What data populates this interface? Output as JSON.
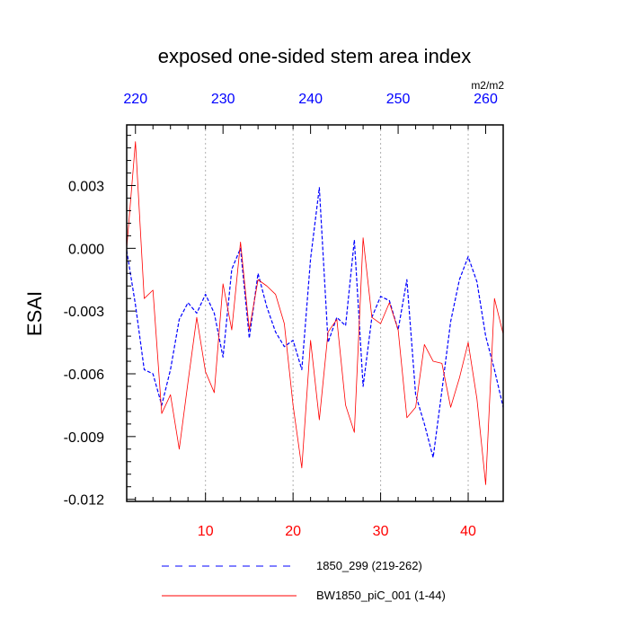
{
  "chart_data": {
    "type": "line",
    "title": "exposed one-sided stem area index",
    "ylabel": "ESAI",
    "units": "m2/m2",
    "x_bottom": {
      "range": [
        1,
        44
      ],
      "ticks": [
        10,
        20,
        30,
        40
      ],
      "tick_labels": [
        "10",
        "20",
        "30",
        "40"
      ],
      "color": "#ff0000"
    },
    "x_top": {
      "range": [
        219,
        262
      ],
      "ticks": [
        220,
        230,
        240,
        250,
        260
      ],
      "tick_labels": [
        "220",
        "230",
        "240",
        "250",
        "260"
      ],
      "color": "#0000ff"
    },
    "y": {
      "range": [
        -0.0121,
        0.0059
      ],
      "ticks": [
        0.003,
        0.0,
        -0.003,
        -0.006,
        -0.009,
        -0.012
      ],
      "tick_labels": [
        "0.003",
        "0.000",
        "-0.003",
        "-0.006",
        "-0.009",
        "-0.012"
      ]
    },
    "grid": "vertical dotted at major x ticks",
    "legend_position": "bottom",
    "series": [
      {
        "name": "1850_299 (219-262)",
        "axis": "top",
        "color": "#0000ff",
        "style": "dashed",
        "x": [
          219,
          220,
          221,
          222,
          223,
          224,
          225,
          226,
          227,
          228,
          229,
          230,
          231,
          232,
          233,
          234,
          235,
          236,
          237,
          238,
          239,
          240,
          241,
          242,
          243,
          244,
          245,
          246,
          247,
          248,
          249,
          250,
          251,
          252,
          253,
          254,
          255,
          256,
          257,
          258,
          259,
          260,
          261,
          262
        ],
        "y": [
          -0.0001,
          -0.0027,
          -0.0058,
          -0.006,
          -0.0075,
          -0.0058,
          -0.0034,
          -0.0026,
          -0.0031,
          -0.0022,
          -0.0031,
          -0.0052,
          -0.001,
          0.0,
          -0.0043,
          -0.0012,
          -0.0028,
          -0.004,
          -0.0047,
          -0.0044,
          -0.0058,
          -0.0005,
          0.0029,
          -0.0045,
          -0.0033,
          -0.0037,
          0.0004,
          -0.0066,
          -0.0033,
          -0.0023,
          -0.0025,
          -0.0039,
          -0.0015,
          -0.007,
          -0.0084,
          -0.01,
          -0.0068,
          -0.0035,
          -0.0015,
          -0.0004,
          -0.0016,
          -0.0042,
          -0.0058,
          -0.0076
        ]
      },
      {
        "name": "BW1850_piC_001 (1-44)",
        "axis": "bottom",
        "color": "#ff0000",
        "style": "solid",
        "x": [
          1,
          2,
          3,
          4,
          5,
          6,
          7,
          8,
          9,
          10,
          11,
          12,
          13,
          14,
          15,
          16,
          17,
          18,
          19,
          20,
          21,
          22,
          23,
          24,
          25,
          26,
          27,
          28,
          29,
          30,
          31,
          32,
          33,
          34,
          35,
          36,
          37,
          38,
          39,
          40,
          41,
          42,
          43,
          44
        ],
        "y": [
          0.0,
          0.0051,
          -0.0024,
          -0.002,
          -0.0079,
          -0.007,
          -0.0096,
          -0.0064,
          -0.0033,
          -0.0059,
          -0.0069,
          -0.0017,
          -0.0039,
          0.0003,
          -0.0039,
          -0.0015,
          -0.0018,
          -0.0022,
          -0.0036,
          -0.0075,
          -0.0105,
          -0.0044,
          -0.0082,
          -0.004,
          -0.0034,
          -0.0075,
          -0.0088,
          0.0005,
          -0.0033,
          -0.0036,
          -0.0026,
          -0.0039,
          -0.0081,
          -0.0076,
          -0.0046,
          -0.0054,
          -0.0055,
          -0.0076,
          -0.0062,
          -0.0045,
          -0.0072,
          -0.0113,
          -0.0024,
          -0.0041
        ]
      }
    ]
  }
}
